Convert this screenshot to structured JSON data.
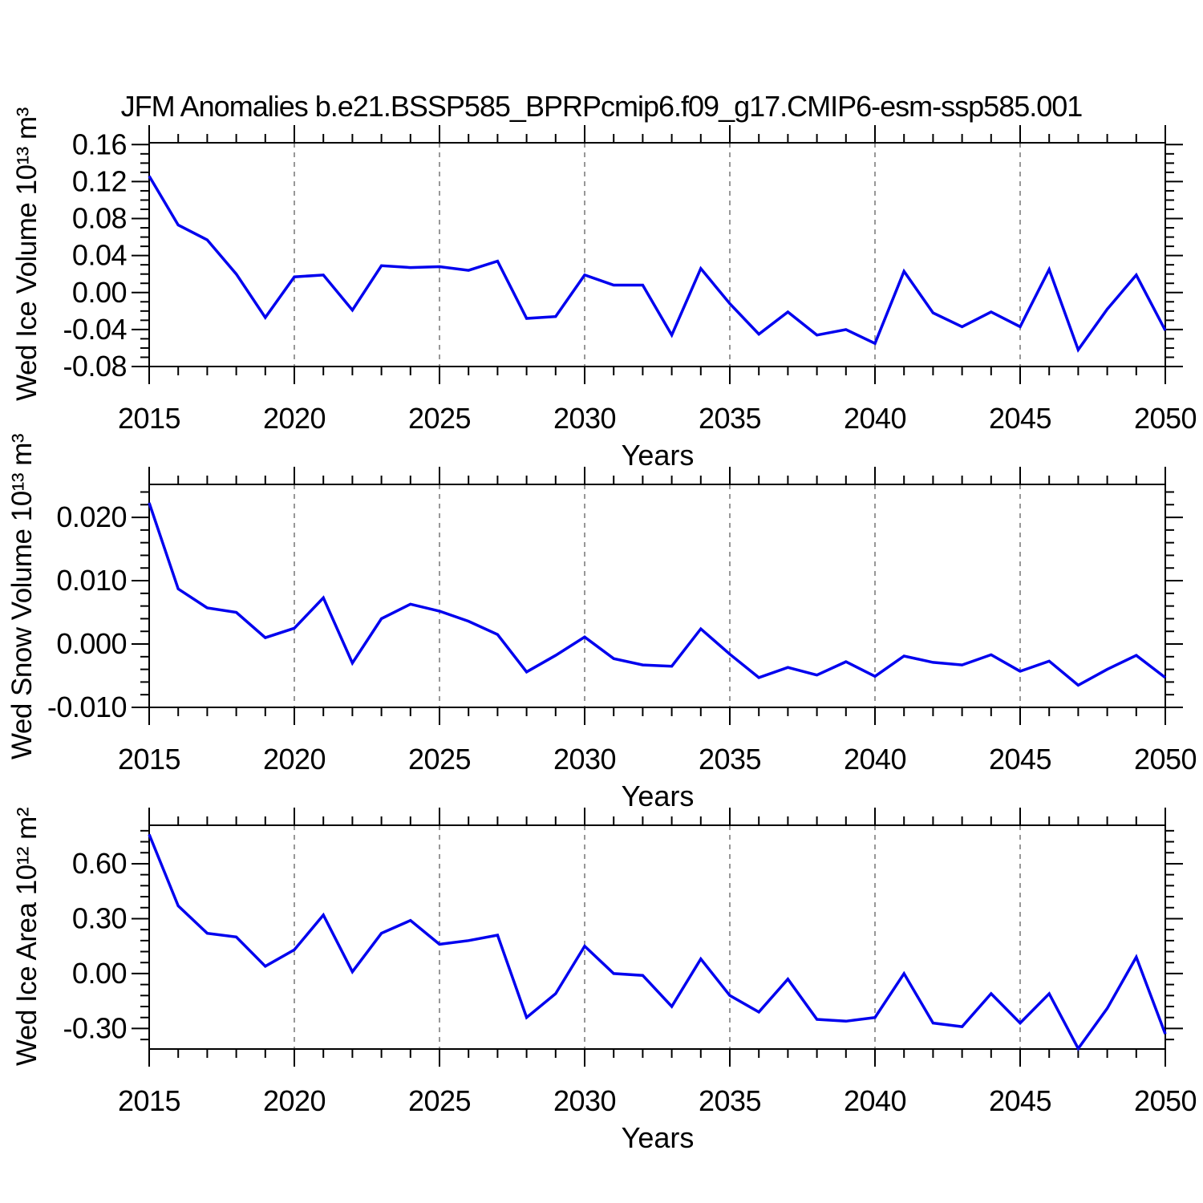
{
  "title": "JFM Anomalies b.e21.BSSP585_BPRPcmip6.f09_g17.CMIP6-esm-ssp585.001",
  "years": [
    2015,
    2016,
    2017,
    2018,
    2019,
    2020,
    2021,
    2022,
    2023,
    2024,
    2025,
    2026,
    2027,
    2028,
    2029,
    2030,
    2031,
    2032,
    2033,
    2034,
    2035,
    2036,
    2037,
    2038,
    2039,
    2040,
    2041,
    2042,
    2043,
    2044,
    2045,
    2046,
    2047,
    2048,
    2049,
    2050
  ],
  "xlim": [
    2015,
    2050
  ],
  "xtick_major_step": 5,
  "xtick_minor_step": 1,
  "xtick_labels": [
    "2015",
    "2020",
    "2025",
    "2030",
    "2035",
    "2040",
    "2045",
    "2050"
  ],
  "grid_years": [
    2020,
    2025,
    2030,
    2035,
    2040,
    2045
  ],
  "line_color": "#0000ee",
  "grid_color": "#777777",
  "frame_color": "#000000",
  "chart_data": [
    {
      "type": "line",
      "ylabel": "Wed Ice Volume 10¹³ m³",
      "xlabel": "Years",
      "ylim": [
        -0.08,
        0.162
      ],
      "yticks": [
        -0.08,
        -0.04,
        0.0,
        0.04,
        0.08,
        0.12,
        0.16
      ],
      "ytick_labels": [
        "-0.08",
        "-0.04",
        "0.00",
        "0.04",
        "0.08",
        "0.12",
        "0.16"
      ],
      "y_major_step": 0.04,
      "y_minor_step": 0.01,
      "values": [
        0.126,
        0.073,
        0.057,
        0.02,
        -0.027,
        0.017,
        0.019,
        -0.019,
        0.029,
        0.027,
        0.028,
        0.024,
        0.034,
        -0.028,
        -0.026,
        0.019,
        0.008,
        0.008,
        -0.046,
        0.026,
        -0.012,
        -0.045,
        -0.021,
        -0.046,
        -0.04,
        -0.055,
        0.023,
        -0.022,
        -0.037,
        -0.021,
        -0.037,
        0.025,
        -0.062,
        -0.018,
        0.019,
        -0.041
      ]
    },
    {
      "type": "line",
      "ylabel": "Wed Snow Volume 10¹³ m³",
      "xlabel": "Years",
      "ylim": [
        -0.01,
        0.0252
      ],
      "yticks": [
        -0.01,
        0.0,
        0.01,
        0.02
      ],
      "ytick_labels": [
        "-0.010",
        "0.000",
        "0.010",
        "0.020"
      ],
      "y_major_step": 0.01,
      "y_minor_step": 0.002,
      "values": [
        0.0223,
        0.0087,
        0.0057,
        0.005,
        0.001,
        0.0025,
        0.0073,
        -0.003,
        0.004,
        0.0063,
        0.0052,
        0.0036,
        0.0015,
        -0.0044,
        -0.0018,
        0.0011,
        -0.0023,
        -0.0033,
        -0.0035,
        0.0024,
        -0.0016,
        -0.0053,
        -0.0037,
        -0.0049,
        -0.0028,
        -0.0051,
        -0.0019,
        -0.0029,
        -0.0033,
        -0.0017,
        -0.0043,
        -0.0027,
        -0.0065,
        -0.004,
        -0.0018,
        -0.0053
      ]
    },
    {
      "type": "line",
      "ylabel": "Wed Ice Area 10¹² m²",
      "xlabel": "Years",
      "ylim": [
        -0.412,
        0.81
      ],
      "yticks": [
        -0.3,
        0.0,
        0.3,
        0.6
      ],
      "ytick_labels": [
        "-0.30",
        "0.00",
        "0.30",
        "0.60"
      ],
      "y_major_step": 0.3,
      "y_minor_step": 0.06,
      "values": [
        0.76,
        0.37,
        0.22,
        0.2,
        0.04,
        0.13,
        0.32,
        0.01,
        0.22,
        0.29,
        0.16,
        0.18,
        0.21,
        -0.24,
        -0.11,
        0.15,
        0.0,
        -0.01,
        -0.18,
        0.08,
        -0.12,
        -0.21,
        -0.03,
        -0.25,
        -0.26,
        -0.24,
        0.0,
        -0.27,
        -0.29,
        -0.11,
        -0.27,
        -0.11,
        -0.41,
        -0.19,
        0.09,
        -0.33
      ]
    }
  ]
}
